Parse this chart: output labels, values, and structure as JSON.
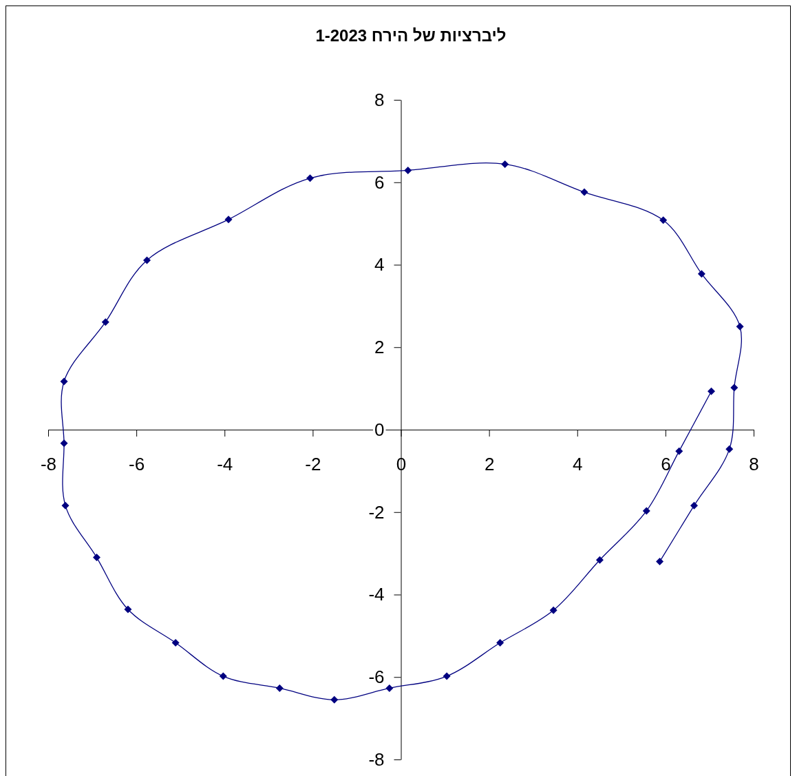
{
  "chart_data": {
    "type": "line",
    "title": "ליברציות של הירח 1-2023",
    "x": [
      5.87,
      6.65,
      7.45,
      7.56,
      7.69,
      6.82,
      5.95,
      4.16,
      2.36,
      0.16,
      -2.06,
      -3.91,
      -5.76,
      -6.7,
      -7.64,
      -7.64,
      -7.61,
      -6.9,
      -6.19,
      -5.11,
      -4.03,
      -2.75,
      -1.51,
      -0.26,
      1.04,
      2.25,
      3.46,
      4.51,
      5.57,
      6.31,
      7.04
    ],
    "values": [
      -3.2,
      -1.84,
      -0.47,
      1.02,
      2.5,
      3.78,
      5.08,
      5.76,
      6.44,
      6.29,
      6.1,
      5.1,
      4.11,
      2.61,
      1.17,
      -0.33,
      -1.84,
      -3.1,
      -4.36,
      -5.17,
      -5.98,
      -6.27,
      -6.55,
      -6.27,
      -5.98,
      -5.17,
      -4.38,
      -3.16,
      -1.97,
      -0.52,
      0.93
    ],
    "color": "#000080",
    "xlim": [
      -8,
      8
    ],
    "xticks": [
      -8,
      -6,
      -4,
      -2,
      0,
      2,
      4,
      6,
      8
    ],
    "ylim": [
      -8,
      8
    ],
    "yticks": [
      -8,
      -6,
      -4,
      -2,
      0,
      2,
      4,
      6,
      8
    ],
    "marker": "diamond",
    "line_style": "solid"
  }
}
